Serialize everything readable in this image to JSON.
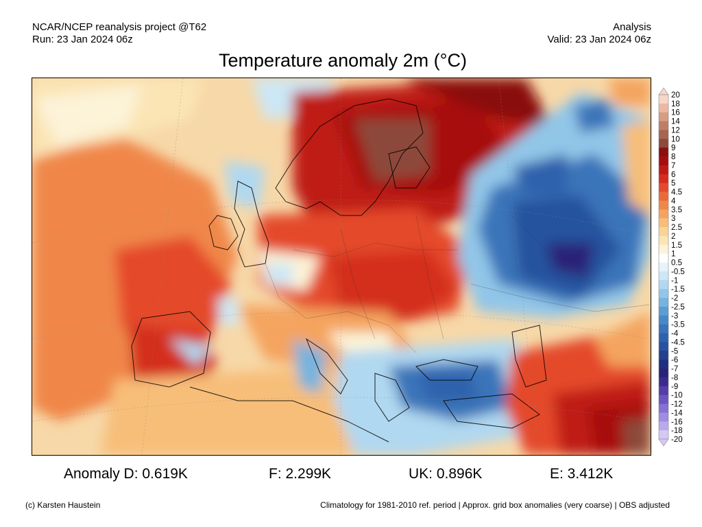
{
  "header": {
    "source": "NCAR/NCEP reanalysis project @T62",
    "run": "Run: 23 Jan 2024 06z",
    "mode": "Analysis",
    "valid": "Valid: 23 Jan 2024 06z"
  },
  "title": "Temperature anomaly 2m (°C)",
  "legend": {
    "levels": [
      "20",
      "18",
      "16",
      "14",
      "12",
      "10",
      "9",
      "8",
      "7",
      "6",
      "5",
      "4.5",
      "4",
      "3.5",
      "3",
      "2.5",
      "2",
      "1.5",
      "1",
      "0.5",
      "-0.5",
      "-1",
      "-1.5",
      "-2",
      "-2.5",
      "-3",
      "-3.5",
      "-4",
      "-4.5",
      "-5",
      "-6",
      "-7",
      "-8",
      "-9",
      "-10",
      "-12",
      "-14",
      "-16",
      "-18",
      "-20"
    ],
    "colors": [
      "#f6d6c7",
      "#ebb9a3",
      "#d69c84",
      "#c07d66",
      "#a76450",
      "#8c4a3a",
      "#8a0f0f",
      "#a70d0d",
      "#bf1a15",
      "#d42d1e",
      "#e44a2c",
      "#ec6a3a",
      "#f0874a",
      "#f4a45f",
      "#f7be79",
      "#f9d495",
      "#fbe5b5",
      "#fcf3d8",
      "#ffffff",
      "#e6f3fb",
      "#cce7f6",
      "#b0d8f0",
      "#92c6e8",
      "#76b3de",
      "#5c9dd2",
      "#4888c6",
      "#3a74b9",
      "#2f62ac",
      "#28529e",
      "#24408f",
      "#222f80",
      "#2a2378",
      "#3b2b8e",
      "#543ea8",
      "#6c55c0",
      "#8670d2",
      "#a08ce0",
      "#baa9ec",
      "#d4c8f5"
    ]
  },
  "stats": {
    "d": "Anomaly D: 0.619K",
    "f": "F: 2.299K",
    "uk": "UK: 0.896K",
    "e": "E: 3.412K"
  },
  "footer": {
    "credit": "(c) Karsten Haustein",
    "note": "Climatology for 1981-2010 ref. period | Approx. grid box anomalies (very coarse) | OBS adjusted"
  }
}
